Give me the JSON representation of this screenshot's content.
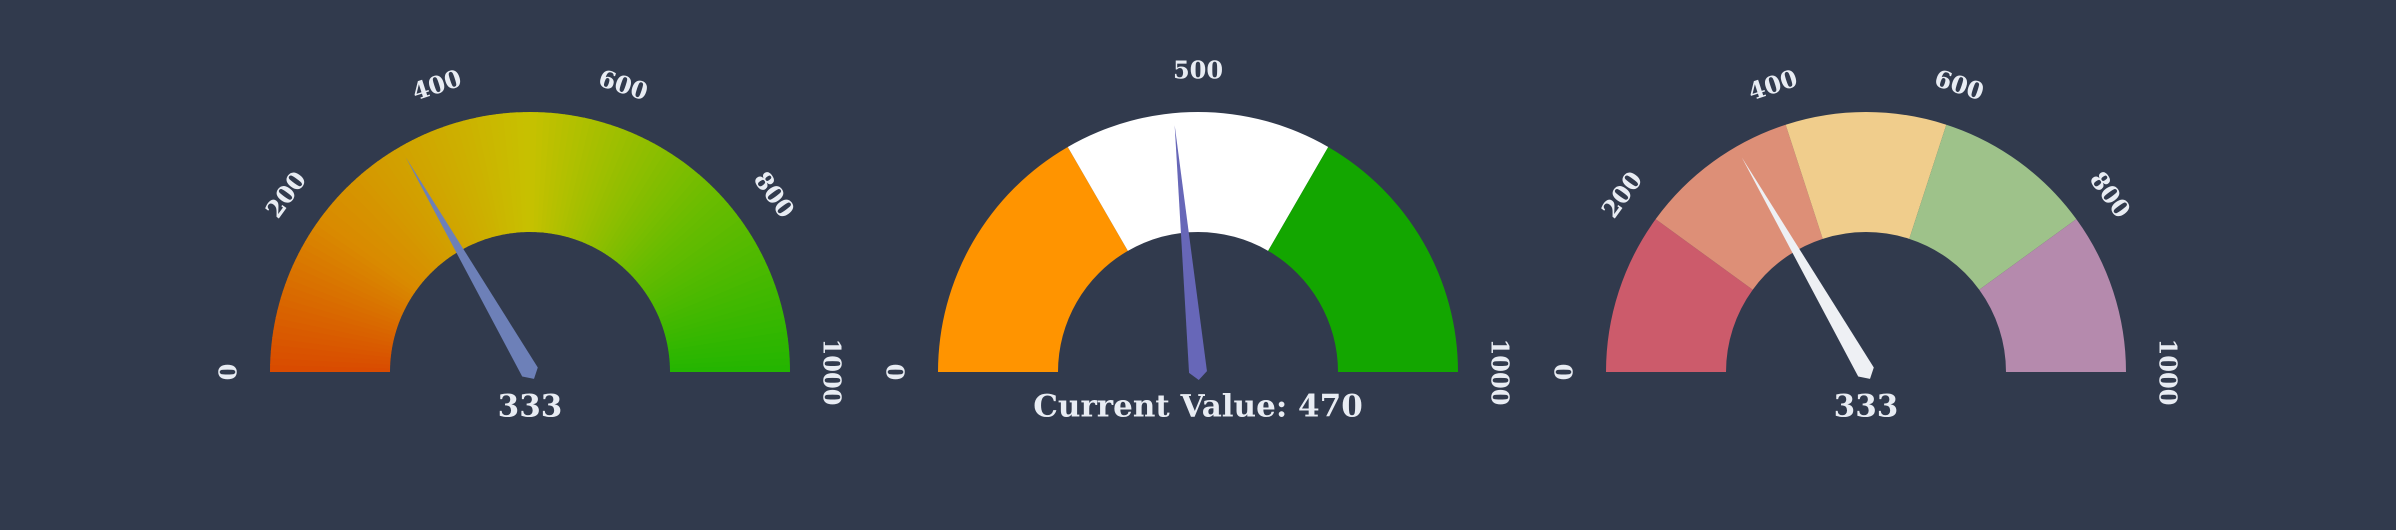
{
  "chart_data": [
    {
      "type": "gauge",
      "min": 0,
      "max": 1000,
      "value": 333,
      "value_label": "333",
      "tick_labels": [
        "0",
        "200",
        "400",
        "600",
        "800",
        "1000"
      ],
      "tick_values": [
        0,
        200,
        400,
        600,
        800,
        1000
      ],
      "style": "gradient",
      "gradient_stops": [
        {
          "value": 0,
          "color": "#d94a00"
        },
        {
          "value": 200,
          "color": "#d98a00"
        },
        {
          "value": 500,
          "color": "#c7c100"
        },
        {
          "value": 750,
          "color": "#6cbc00"
        },
        {
          "value": 1000,
          "color": "#23b500"
        }
      ],
      "needle_color": "#6d80b8"
    },
    {
      "type": "gauge",
      "min": 0,
      "max": 1000,
      "value": 470,
      "value_label": "Current Value: 470",
      "tick_labels": [
        "0",
        "500",
        "1000"
      ],
      "tick_values": [
        0,
        500,
        1000
      ],
      "style": "segments",
      "segments": [
        {
          "from": 0,
          "to": 333,
          "color": "#ff9400"
        },
        {
          "from": 333,
          "to": 667,
          "color": "#ffffff"
        },
        {
          "from": 667,
          "to": 1000,
          "color": "#13a600"
        }
      ],
      "needle_color": "#6767b8"
    },
    {
      "type": "gauge",
      "min": 0,
      "max": 1000,
      "value": 333,
      "value_label": "333",
      "tick_labels": [
        "0",
        "200",
        "400",
        "600",
        "800",
        "1000"
      ],
      "tick_values": [
        0,
        200,
        400,
        600,
        800,
        1000
      ],
      "style": "segments",
      "segments": [
        {
          "from": 0,
          "to": 200,
          "color": "#cc5b6b"
        },
        {
          "from": 200,
          "to": 400,
          "color": "#dd8f77"
        },
        {
          "from": 400,
          "to": 600,
          "color": "#f0cd8c"
        },
        {
          "from": 600,
          "to": 800,
          "color": "#9ec28a"
        },
        {
          "from": 800,
          "to": 1000,
          "color": "#b58aad"
        }
      ],
      "needle_color": "#eef0f4"
    }
  ]
}
